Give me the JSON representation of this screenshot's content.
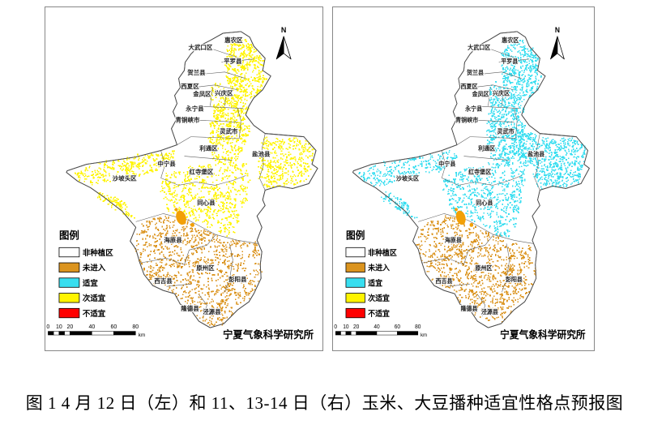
{
  "figure": {
    "caption": "图 1 4 月 12 日（左）和 11、13-14 日（右）玉米、大豆播种适宜性格点预报图"
  },
  "map": {
    "north_label": "N",
    "legend_title": "图例",
    "legend_items": [
      {
        "label": "非种植区",
        "color": "#FFFFFF"
      },
      {
        "label": "未进入",
        "color": "#DB941F"
      },
      {
        "label": "适宜",
        "color": "#38DEF0"
      },
      {
        "label": "次适宜",
        "color": "#FFF400"
      },
      {
        "label": "不适宜",
        "color": "#FF0000"
      }
    ],
    "scale_ticks": [
      "0",
      "10",
      "20",
      "40",
      "60",
      "80"
    ],
    "scale_unit": "km",
    "credit": "宁夏气象科学研究所",
    "regions": [
      "大武口区",
      "惠农区",
      "平罗县",
      "贺兰县",
      "西夏区",
      "金凤区",
      "兴庆区",
      "永宁县",
      "青铜峡市",
      "灵武市",
      "利通区",
      "盐池县",
      "中宁县",
      "红寺堡区",
      "沙坡头区",
      "同心县",
      "海原县",
      "原州区",
      "西吉县",
      "彭阳县",
      "隆德县",
      "泾源县"
    ],
    "panels": [
      {
        "side": "左",
        "dots_class": "次适宜"
      },
      {
        "side": "右",
        "dots_class": "适宜"
      }
    ],
    "highlight_blob_color": "#F2A007"
  }
}
